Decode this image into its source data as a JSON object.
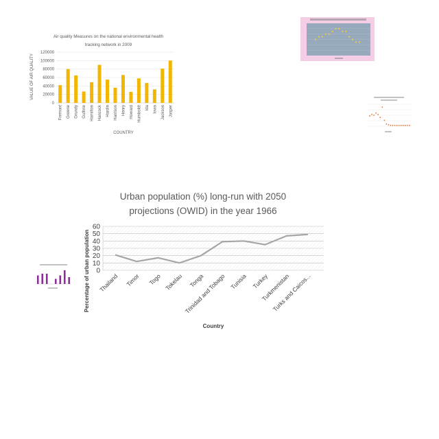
{
  "colors": {
    "bar_yellow": "#f2b705",
    "line_gray": "#a6a6a6",
    "thumb_pink_bg": "#f6cde6",
    "thumb_blue_plot": "#97a9bd",
    "thumb_dot_yellow": "#f0d232",
    "thumb_orange": "#e8742a",
    "thumb_purple": "#8e2d9c"
  },
  "chart_data": [
    {
      "type": "bar",
      "title_line1": "Air quality Measures on the national environmental health",
      "title_line2": "tracking network in 2009",
      "xlabel": "COUNTRY",
      "ylabel": "VALUE OF AIR QUALITY",
      "categories": [
        "Fremont",
        "Greene",
        "Grundy",
        "Guthrie",
        "Hamilton",
        "Hancock",
        "Hardin",
        "Harrison",
        "Henry",
        "Howard",
        "Humboldt",
        "Ida",
        "Iowa",
        "Jackson",
        "Jasper"
      ],
      "values": [
        42000,
        80000,
        65000,
        27000,
        49000,
        90000,
        55000,
        36000,
        66000,
        26000,
        58000,
        47000,
        32000,
        81000,
        100000
      ],
      "ylim": [
        0,
        120000
      ],
      "yticks": [
        "0",
        "20000",
        "40000",
        "60000",
        "80000",
        "100000",
        "120000"
      ],
      "grid": true,
      "legend": "none"
    },
    {
      "type": "line",
      "title_line1": "Urban population (%) long-run with 2050",
      "title_line2": "projections (OWID) in the year 1966",
      "xlabel": "Country",
      "ylabel": "Percentage of urban population",
      "categories": [
        "Thailand",
        "Timor",
        "Togo",
        "Tokelau",
        "Tonga",
        "Trinidad and Tobago",
        "Tunisia",
        "Turkey",
        "Turkmenistan",
        "Turks and Caicos..."
      ],
      "values": [
        21,
        12,
        17,
        10,
        20,
        39,
        40,
        35,
        47,
        49
      ],
      "ylim": [
        0,
        60
      ],
      "yticks": [
        "0",
        "10",
        "20",
        "30",
        "40",
        "50",
        "60"
      ],
      "grid": true,
      "legend": "none"
    },
    {
      "type": "scatter",
      "series": [
        {
          "values": [
            6,
            7,
            7,
            8,
            8,
            9,
            10,
            10,
            9,
            9,
            7,
            6,
            5,
            5
          ]
        }
      ],
      "ylim": [
        0,
        12
      ]
    },
    {
      "type": "scatter",
      "series": [
        {
          "values": [
            14,
            16,
            15,
            18,
            16,
            12,
            26,
            8,
            3,
            2,
            1,
            1,
            1,
            1,
            1,
            1,
            1,
            1,
            1,
            1
          ]
        }
      ],
      "ylim": [
        0,
        30
      ]
    },
    {
      "type": "bar",
      "series": [
        {
          "values": [
            5,
            6,
            6,
            0,
            3,
            5,
            8,
            4
          ]
        }
      ],
      "ylim": [
        0,
        10
      ]
    }
  ]
}
